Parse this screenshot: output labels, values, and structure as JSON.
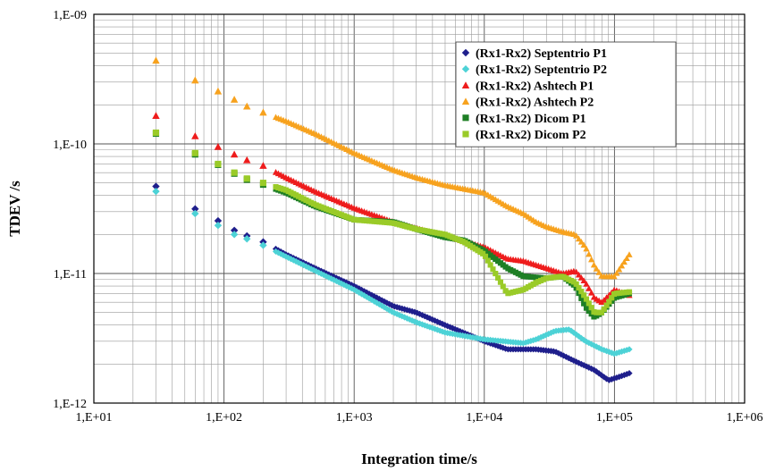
{
  "chart_data": {
    "type": "scatter",
    "xlabel": "Integration time/s",
    "ylabel": "TDEV /s",
    "x_scale": "log",
    "y_scale": "log",
    "xlim": [
      10,
      1000000
    ],
    "ylim": [
      1e-12,
      1e-09
    ],
    "x_tick_labels": [
      "1,E+01",
      "1,E+02",
      "1,E+03",
      "1,E+04",
      "1,E+05",
      "1,E+06"
    ],
    "y_tick_labels": [
      "1,E-09",
      "1,E-10",
      "1,E-11",
      "1,E-12"
    ],
    "grid": true,
    "legend_position": "top-right",
    "series": [
      {
        "name": "(Rx1-Rx2) Septentrio P1",
        "color": "#1f1f8c",
        "marker": "diamond",
        "points": [
          [
            30,
            4.7e-11
          ],
          [
            60,
            3.15e-11
          ],
          [
            90,
            2.55e-11
          ],
          [
            120,
            2.15e-11
          ],
          [
            150,
            1.95e-11
          ],
          [
            200,
            1.75e-11
          ],
          [
            300,
            1.4e-11
          ],
          [
            500,
            1.1e-11
          ],
          [
            1000,
            8e-12
          ],
          [
            2000,
            5.6e-12
          ],
          [
            3000,
            5e-12
          ],
          [
            5000,
            4e-12
          ],
          [
            10000,
            3e-12
          ],
          [
            15000,
            2.6e-12
          ],
          [
            25000,
            2.6e-12
          ],
          [
            35000,
            2.5e-12
          ],
          [
            50000,
            2.1e-12
          ],
          [
            70000,
            1.8e-12
          ],
          [
            90000,
            1.5e-12
          ],
          [
            110000,
            1.6e-12
          ],
          [
            130000,
            1.7e-12
          ]
        ]
      },
      {
        "name": "(Rx1-Rx2) Septentrio P2",
        "color": "#4dd2d6",
        "marker": "diamond",
        "points": [
          [
            30,
            4.3e-11
          ],
          [
            60,
            2.9e-11
          ],
          [
            90,
            2.35e-11
          ],
          [
            120,
            2e-11
          ],
          [
            150,
            1.85e-11
          ],
          [
            200,
            1.65e-11
          ],
          [
            300,
            1.35e-11
          ],
          [
            500,
            1.05e-11
          ],
          [
            1000,
            7.5e-12
          ],
          [
            2000,
            5e-12
          ],
          [
            3000,
            4.2e-12
          ],
          [
            5000,
            3.5e-12
          ],
          [
            10000,
            3.1e-12
          ],
          [
            20000,
            2.9e-12
          ],
          [
            25000,
            3.1e-12
          ],
          [
            35000,
            3.6e-12
          ],
          [
            45000,
            3.7e-12
          ],
          [
            60000,
            3e-12
          ],
          [
            80000,
            2.6e-12
          ],
          [
            100000,
            2.4e-12
          ],
          [
            130000,
            2.6e-12
          ]
        ]
      },
      {
        "name": "(Rx1-Rx2) Ashtech P1",
        "color": "#ee1c1c",
        "marker": "triangle",
        "points": [
          [
            30,
            1.65e-10
          ],
          [
            60,
            1.15e-10
          ],
          [
            90,
            9.5e-11
          ],
          [
            120,
            8.3e-11
          ],
          [
            150,
            7.5e-11
          ],
          [
            200,
            6.8e-11
          ],
          [
            300,
            5.5e-11
          ],
          [
            500,
            4.3e-11
          ],
          [
            1000,
            3.2e-11
          ],
          [
            2000,
            2.5e-11
          ],
          [
            5000,
            1.95e-11
          ],
          [
            10000,
            1.6e-11
          ],
          [
            15000,
            1.3e-11
          ],
          [
            20000,
            1.25e-11
          ],
          [
            30000,
            1.1e-11
          ],
          [
            40000,
            1e-11
          ],
          [
            50000,
            1.05e-11
          ],
          [
            60000,
            8.5e-12
          ],
          [
            70000,
            6.5e-12
          ],
          [
            80000,
            6e-12
          ],
          [
            100000,
            7.5e-12
          ],
          [
            130000,
            6.8e-12
          ]
        ]
      },
      {
        "name": "(Rx1-Rx2) Ashtech P2",
        "color": "#f7a21e",
        "marker": "triangle",
        "points": [
          [
            30,
            4.4e-10
          ],
          [
            60,
            3.1e-10
          ],
          [
            90,
            2.55e-10
          ],
          [
            120,
            2.2e-10
          ],
          [
            150,
            1.95e-10
          ],
          [
            200,
            1.75e-10
          ],
          [
            300,
            1.5e-10
          ],
          [
            500,
            1.2e-10
          ],
          [
            1000,
            8.5e-11
          ],
          [
            2000,
            6.3e-11
          ],
          [
            3000,
            5.5e-11
          ],
          [
            5000,
            4.8e-11
          ],
          [
            10000,
            4.2e-11
          ],
          [
            15000,
            3.3e-11
          ],
          [
            20000,
            2.9e-11
          ],
          [
            25000,
            2.5e-11
          ],
          [
            30000,
            2.3e-11
          ],
          [
            40000,
            2.1e-11
          ],
          [
            50000,
            2e-11
          ],
          [
            60000,
            1.6e-11
          ],
          [
            70000,
            1.15e-11
          ],
          [
            80000,
            9.5e-12
          ],
          [
            100000,
            9.5e-12
          ],
          [
            130000,
            1.4e-11
          ]
        ]
      },
      {
        "name": "(Rx1-Rx2) Dicom P1",
        "color": "#1e7f25",
        "marker": "square",
        "points": [
          [
            30,
            1.2e-10
          ],
          [
            60,
            8.3e-11
          ],
          [
            90,
            6.9e-11
          ],
          [
            120,
            5.9e-11
          ],
          [
            150,
            5.3e-11
          ],
          [
            200,
            4.85e-11
          ],
          [
            300,
            4.2e-11
          ],
          [
            500,
            3.3e-11
          ],
          [
            1000,
            2.6e-11
          ],
          [
            2000,
            2.5e-11
          ],
          [
            3000,
            2.2e-11
          ],
          [
            5000,
            1.9e-11
          ],
          [
            7000,
            1.8e-11
          ],
          [
            10000,
            1.5e-11
          ],
          [
            15000,
            1.1e-11
          ],
          [
            20000,
            9.5e-12
          ],
          [
            30000,
            9.2e-12
          ],
          [
            40000,
            9.5e-12
          ],
          [
            50000,
            8e-12
          ],
          [
            60000,
            5.5e-12
          ],
          [
            70000,
            4.6e-12
          ],
          [
            80000,
            5e-12
          ],
          [
            100000,
            6.5e-12
          ],
          [
            130000,
            7e-12
          ]
        ]
      },
      {
        "name": "(Rx1-Rx2) Dicom P2",
        "color": "#9acb28",
        "marker": "square",
        "points": [
          [
            30,
            1.22e-10
          ],
          [
            60,
            8.5e-11
          ],
          [
            90,
            7e-11
          ],
          [
            120,
            6e-11
          ],
          [
            150,
            5.4e-11
          ],
          [
            200,
            5e-11
          ],
          [
            300,
            4.4e-11
          ],
          [
            500,
            3.4e-11
          ],
          [
            1000,
            2.6e-11
          ],
          [
            2000,
            2.45e-11
          ],
          [
            3000,
            2.2e-11
          ],
          [
            5000,
            2e-11
          ],
          [
            7000,
            1.75e-11
          ],
          [
            10000,
            1.4e-11
          ],
          [
            15000,
            7e-12
          ],
          [
            20000,
            7.5e-12
          ],
          [
            25000,
            8.5e-12
          ],
          [
            30000,
            9.2e-12
          ],
          [
            40000,
            9.5e-12
          ],
          [
            50000,
            8.5e-12
          ],
          [
            60000,
            6.5e-12
          ],
          [
            70000,
            5e-12
          ],
          [
            80000,
            5e-12
          ],
          [
            100000,
            7e-12
          ],
          [
            130000,
            7.2e-12
          ]
        ]
      }
    ]
  }
}
